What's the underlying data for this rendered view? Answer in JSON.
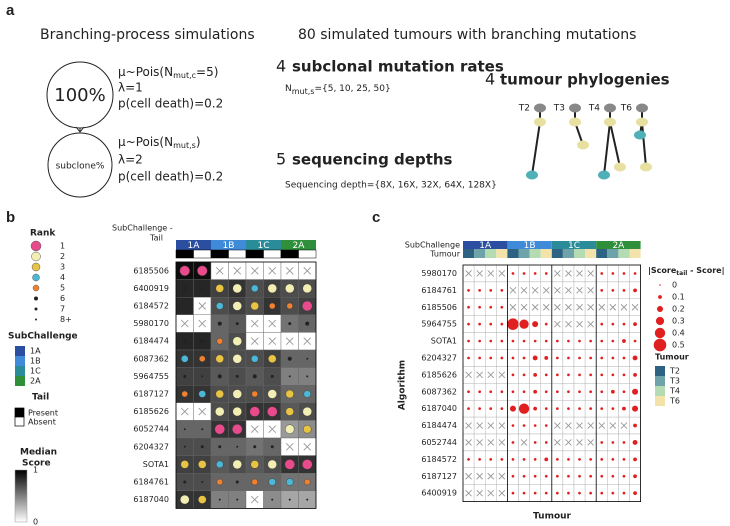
{
  "panel_a": {
    "label": "a",
    "left_title": "Branching-process simulations",
    "right_title": "80 simulated tumours with branching mutations",
    "clonal": {
      "node": "100%",
      "rate_pre": "μ~Pois(N",
      "rate_sub": "mut,c",
      "rate_post": "=5)",
      "lambda": "λ=1",
      "death": "p(cell death)=0.2"
    },
    "subclonal": {
      "node": "subclone%",
      "rate_pre": "μ~Pois(N",
      "rate_sub": "mut,s",
      "rate_post": ")",
      "lambda": "λ=2",
      "death": "p(cell death)=0.2"
    },
    "rates": {
      "count": 4,
      "title": "subclonal mutation rates",
      "def_pre": "N",
      "def_sub": "mut,s",
      "def_post": "={5, 10, 25, 50}"
    },
    "depths": {
      "count": 5,
      "title": "sequencing depths",
      "def": "Sequencing depth={8X, 16X, 32X, 64X, 128X}"
    },
    "phylogenies": {
      "count": 4,
      "title": "tumour phylogenies",
      "trees": [
        "T2",
        "T3",
        "T4",
        "T6"
      ]
    }
  },
  "panel_b": {
    "label": "b",
    "rank_legend": {
      "title": "Rank",
      "levels": [
        1,
        2,
        3,
        4,
        5,
        6,
        7,
        "8+"
      ],
      "colors": [
        "#e84a8c",
        "#f3efb4",
        "#e9c444",
        "#4cb8d8",
        "#f0812f",
        "#222222",
        "#222222",
        "#222222"
      ]
    },
    "subchallenge_legend": {
      "title": "SubChallenge",
      "items": [
        {
          "name": "1A",
          "color": "#2b4ea0"
        },
        {
          "name": "1B",
          "color": "#3f8bd9"
        },
        {
          "name": "1C",
          "color": "#2a8c99"
        },
        {
          "name": "2A",
          "color": "#2f8f3a"
        }
      ]
    },
    "tail_legend": {
      "title": "Tail",
      "items": [
        {
          "name": "Present",
          "color": "#000000"
        },
        {
          "name": "Absent",
          "color": "#ffffff"
        }
      ]
    },
    "score_legend": {
      "title_1": "Median",
      "title_2": "Score",
      "ticks": [
        1,
        0
      ]
    },
    "header": {
      "subchallenge_label": "SubChallenge -",
      "tail_label": "Tail"
    },
    "rows": [
      {
        "name": "6185506",
        "ranks": [
          1,
          1,
          null,
          null,
          null,
          null,
          null,
          null
        ],
        "scores": [
          0.95,
          0.95,
          null,
          null,
          null,
          null,
          null,
          null
        ]
      },
      {
        "name": "6400919",
        "ranks": [
          6,
          7,
          3,
          2,
          4,
          2,
          2,
          2
        ],
        "scores": [
          0.85,
          0.85,
          0.75,
          0.8,
          0.7,
          0.75,
          0.7,
          0.7
        ]
      },
      {
        "name": "6184572",
        "ranks": [
          8,
          null,
          4,
          2,
          3,
          5,
          5,
          1
        ],
        "scores": [
          0.85,
          null,
          0.7,
          0.75,
          0.7,
          0.8,
          0.7,
          0.75
        ]
      },
      {
        "name": "5980170",
        "ranks": [
          null,
          null,
          6,
          7,
          null,
          null,
          7,
          6
        ],
        "scores": [
          null,
          null,
          0.6,
          0.65,
          null,
          null,
          0.55,
          0.6
        ]
      },
      {
        "name": "6184474",
        "ranks": [
          6,
          6,
          5,
          2,
          null,
          null,
          null,
          null
        ],
        "scores": [
          0.85,
          0.85,
          0.6,
          0.7,
          null,
          null,
          null,
          null
        ]
      },
      {
        "name": "6087362",
        "ranks": [
          4,
          5,
          3,
          2,
          4,
          3,
          6,
          8
        ],
        "scores": [
          0.8,
          0.8,
          0.7,
          0.7,
          0.7,
          0.75,
          0.6,
          0.6
        ]
      },
      {
        "name": "5964755",
        "ranks": [
          7,
          8,
          6,
          7,
          6,
          7,
          8,
          8
        ],
        "scores": [
          0.75,
          0.75,
          0.65,
          0.7,
          0.65,
          0.7,
          0.5,
          0.5
        ]
      },
      {
        "name": "6187127",
        "ranks": [
          5,
          4,
          3,
          2,
          5,
          2,
          3,
          4
        ],
        "scores": [
          0.8,
          0.8,
          0.7,
          0.7,
          0.7,
          0.7,
          0.6,
          0.6
        ]
      },
      {
        "name": "6185626",
        "ranks": [
          null,
          null,
          2,
          2,
          1,
          1,
          3,
          2
        ],
        "scores": [
          null,
          null,
          0.7,
          0.75,
          0.8,
          0.8,
          0.65,
          0.7
        ]
      },
      {
        "name": "6052744",
        "ranks": [
          8,
          8,
          1,
          1,
          null,
          null,
          2,
          3
        ],
        "scores": [
          0.6,
          0.6,
          0.8,
          0.8,
          null,
          null,
          0.4,
          0.45
        ]
      },
      {
        "name": "6204327",
        "ranks": [
          8,
          7,
          7,
          8,
          7,
          7,
          null,
          null
        ],
        "scores": [
          0.7,
          0.7,
          0.6,
          0.6,
          0.55,
          0.6,
          null,
          null
        ]
      },
      {
        "name": "SOTA1",
        "ranks": [
          3,
          3,
          4,
          2,
          3,
          2,
          1,
          1
        ],
        "scores": [
          0.75,
          0.75,
          0.65,
          0.7,
          0.65,
          0.7,
          0.8,
          0.8
        ]
      },
      {
        "name": "6184761",
        "ranks": [
          7,
          8,
          5,
          7,
          5,
          4,
          4,
          5
        ],
        "scores": [
          0.7,
          0.7,
          0.6,
          0.6,
          0.6,
          0.6,
          0.55,
          0.55
        ]
      },
      {
        "name": "6187040",
        "ranks": [
          2,
          3,
          8,
          8,
          null,
          8,
          8,
          8
        ],
        "scores": [
          0.8,
          0.8,
          0.5,
          0.5,
          null,
          0.45,
          0.35,
          0.35
        ]
      }
    ]
  },
  "panel_c": {
    "label": "c",
    "header": {
      "subchallenge_label": "SubChallenge",
      "tumour_label": "Tumour"
    },
    "y_label": "Algorithm",
    "x_label": "Tumour",
    "size_legend": {
      "title_pre": "|Score",
      "title_sub": "tail",
      "title_post": " - Score|",
      "levels": [
        0,
        0.1,
        0.2,
        0.3,
        0.4,
        0.5
      ]
    },
    "dot_color": "#e02020",
    "tumour_legend": {
      "title": "Tumour",
      "items": [
        {
          "name": "T2",
          "color": "#2e6283"
        },
        {
          "name": "T3",
          "color": "#6ea3aa"
        },
        {
          "name": "T4",
          "color": "#b5dbb3"
        },
        {
          "name": "T6",
          "color": "#f3e2a9"
        }
      ]
    },
    "rows": [
      {
        "name": "5980170",
        "values": [
          null,
          null,
          null,
          null,
          0.05,
          0.05,
          0.05,
          0.05,
          null,
          null,
          null,
          null,
          0.05,
          0.05,
          0.05,
          0.05
        ]
      },
      {
        "name": "6184761",
        "values": [
          0.05,
          0.05,
          0.05,
          0.05,
          null,
          null,
          null,
          null,
          null,
          null,
          null,
          null,
          0.05,
          0.05,
          0.05,
          0.1
        ]
      },
      {
        "name": "6185506",
        "values": [
          0.05,
          0.05,
          0.05,
          0.05,
          null,
          null,
          null,
          null,
          null,
          null,
          null,
          null,
          null,
          null,
          null,
          null
        ]
      },
      {
        "name": "5964755",
        "values": [
          0.05,
          0.05,
          0.05,
          0.05,
          0.45,
          0.35,
          0.2,
          0.05,
          null,
          null,
          null,
          null,
          0.05,
          0.05,
          0.05,
          0.1
        ]
      },
      {
        "name": "SOTA1",
        "values": [
          0.05,
          0.05,
          0.05,
          0.05,
          0.05,
          0.05,
          0.05,
          0.05,
          0.05,
          0.05,
          0.05,
          0.05,
          0.05,
          0.05,
          0.1,
          0.05
        ]
      },
      {
        "name": "6204327",
        "values": [
          0.05,
          0.05,
          0.05,
          0.05,
          0.05,
          0.05,
          0.15,
          0.1,
          0.05,
          0.05,
          0.05,
          0.05,
          0.05,
          0.05,
          0.05,
          0.15
        ]
      },
      {
        "name": "6185626",
        "values": [
          null,
          null,
          null,
          null,
          0.05,
          0.05,
          0.1,
          0.05,
          0.05,
          0.05,
          0.05,
          0.05,
          0.05,
          0.05,
          0.05,
          0.1
        ]
      },
      {
        "name": "6087362",
        "values": [
          0.05,
          0.05,
          0.05,
          0.05,
          0.05,
          0.05,
          0.1,
          0.05,
          0.05,
          0.05,
          0.05,
          0.05,
          0.05,
          0.1,
          0.05,
          0.2
        ]
      },
      {
        "name": "6187040",
        "values": [
          0.05,
          0.05,
          0.05,
          0.05,
          0.2,
          0.4,
          0.1,
          0.05,
          0.05,
          0.05,
          0.05,
          0.05,
          0.05,
          0.05,
          0.1,
          0.2
        ]
      },
      {
        "name": "6184474",
        "values": [
          null,
          null,
          null,
          null,
          0.05,
          0.05,
          0.05,
          0.05,
          null,
          null,
          null,
          null,
          null,
          null,
          null,
          0.1
        ]
      },
      {
        "name": "6052744",
        "values": [
          null,
          null,
          null,
          null,
          0.05,
          null,
          0.05,
          0.05,
          null,
          null,
          null,
          null,
          0.05,
          0.05,
          0.05,
          0.15
        ]
      },
      {
        "name": "6184572",
        "values": [
          0.05,
          0.05,
          0.05,
          0.05,
          0.05,
          0.05,
          0.05,
          0.1,
          0.05,
          0.05,
          0.05,
          0.05,
          0.05,
          0.05,
          0.05,
          0.1
        ]
      },
      {
        "name": "6187127",
        "values": [
          null,
          null,
          null,
          null,
          0.05,
          0.05,
          0.05,
          0.05,
          0.05,
          0.05,
          0.05,
          0.05,
          0.05,
          0.05,
          0.05,
          0.1
        ]
      },
      {
        "name": "6400919",
        "values": [
          null,
          null,
          null,
          null,
          0.05,
          0.05,
          0.05,
          0.05,
          0.05,
          0.05,
          0.05,
          0.05,
          0.05,
          0.05,
          0.05,
          0.1
        ]
      }
    ]
  }
}
